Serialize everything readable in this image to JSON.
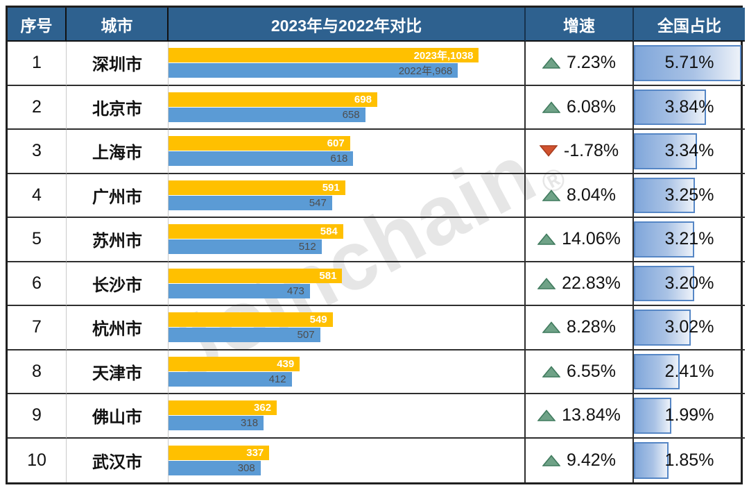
{
  "header": {
    "col_index": "序号",
    "col_city": "城市",
    "col_compare": "2023年与2022年对比",
    "col_growth": "增速",
    "col_share": "全国占比"
  },
  "watermark": {
    "text": "Joinchain",
    "reg": "®"
  },
  "colors": {
    "header_bg": "#2E618F",
    "header_text": "#FFFFFF",
    "bar_2023": "#FFC000",
    "bar_2022": "#5B9BD5",
    "up_triangle_fill": "#6FA287",
    "up_triangle_border": "#3F7A5D",
    "down_triangle_fill": "#D0512E",
    "down_triangle_border": "#A83D1F",
    "share_bar_gradient_start": "#7FA6DA",
    "share_bar_gradient_end": "#EDF2F9",
    "share_bar_border": "#5586C5"
  },
  "chart_data": {
    "type": "bar",
    "orientation": "horizontal",
    "title": "2023年与2022年对比",
    "categories": [
      "深圳市",
      "北京市",
      "上海市",
      "广州市",
      "苏州市",
      "长沙市",
      "杭州市",
      "天津市",
      "佛山市",
      "武汉市"
    ],
    "series": [
      {
        "name": "2023年",
        "color": "#FFC000",
        "values": [
          1038,
          698,
          607,
          591,
          584,
          581,
          549,
          439,
          362,
          337
        ]
      },
      {
        "name": "2022年",
        "color": "#5B9BD5",
        "values": [
          968,
          658,
          618,
          547,
          512,
          473,
          507,
          412,
          318,
          308
        ]
      }
    ],
    "growth_pct": [
      7.23,
      6.08,
      -1.78,
      8.04,
      14.06,
      22.83,
      8.28,
      6.55,
      13.84,
      9.42
    ],
    "national_share_pct": [
      5.71,
      3.84,
      3.34,
      3.25,
      3.21,
      3.2,
      3.02,
      2.41,
      1.99,
      1.85
    ],
    "xlim": [
      0,
      1190
    ],
    "share_axis_max": 5.88,
    "legend_position": "inline-first-row",
    "grid": false
  },
  "rows": [
    {
      "index": "1",
      "city": "深圳市",
      "v2023": 1038,
      "v2022": 968,
      "label2023": "2023年,1038",
      "label2022": "2022年,968",
      "growth": "7.23%",
      "trend": "up",
      "share": "5.71%",
      "share_v": 5.71
    },
    {
      "index": "2",
      "city": "北京市",
      "v2023": 698,
      "v2022": 658,
      "label2023": "698",
      "label2022": "658",
      "growth": "6.08%",
      "trend": "up",
      "share": "3.84%",
      "share_v": 3.84
    },
    {
      "index": "3",
      "city": "上海市",
      "v2023": 607,
      "v2022": 618,
      "label2023": "607",
      "label2022": "618",
      "growth": "-1.78%",
      "trend": "down",
      "share": "3.34%",
      "share_v": 3.34
    },
    {
      "index": "4",
      "city": "广州市",
      "v2023": 591,
      "v2022": 547,
      "label2023": "591",
      "label2022": "547",
      "growth": "8.04%",
      "trend": "up",
      "share": "3.25%",
      "share_v": 3.25
    },
    {
      "index": "5",
      "city": "苏州市",
      "v2023": 584,
      "v2022": 512,
      "label2023": "584",
      "label2022": "512",
      "growth": "14.06%",
      "trend": "up",
      "share": "3.21%",
      "share_v": 3.21
    },
    {
      "index": "6",
      "city": "长沙市",
      "v2023": 581,
      "v2022": 473,
      "label2023": "581",
      "label2022": "473",
      "growth": "22.83%",
      "trend": "up",
      "share": "3.20%",
      "share_v": 3.2
    },
    {
      "index": "7",
      "city": "杭州市",
      "v2023": 549,
      "v2022": 507,
      "label2023": "549",
      "label2022": "507",
      "growth": "8.28%",
      "trend": "up",
      "share": "3.02%",
      "share_v": 3.02
    },
    {
      "index": "8",
      "city": "天津市",
      "v2023": 439,
      "v2022": 412,
      "label2023": "439",
      "label2022": "412",
      "growth": "6.55%",
      "trend": "up",
      "share": "2.41%",
      "share_v": 2.41
    },
    {
      "index": "9",
      "city": "佛山市",
      "v2023": 362,
      "v2022": 318,
      "label2023": "362",
      "label2022": "318",
      "growth": "13.84%",
      "trend": "up",
      "share": "1.99%",
      "share_v": 1.99
    },
    {
      "index": "10",
      "city": "武汉市",
      "v2023": 337,
      "v2022": 308,
      "label2023": "337",
      "label2022": "308",
      "growth": "9.42%",
      "trend": "up",
      "share": "1.85%",
      "share_v": 1.85
    }
  ]
}
